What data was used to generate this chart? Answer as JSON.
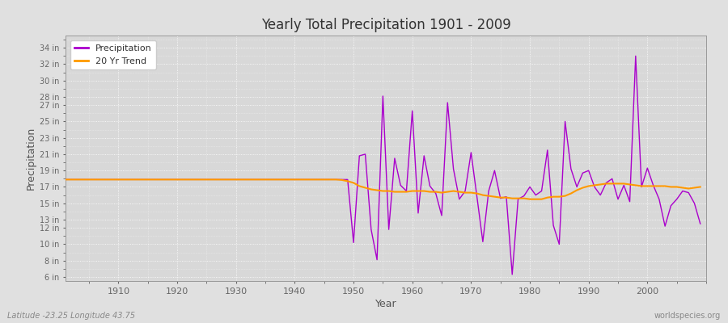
{
  "title": "Yearly Total Precipitation 1901 - 2009",
  "xlabel": "Year",
  "ylabel": "Precipitation",
  "background_color": "#e0e0e0",
  "plot_bg_color": "#d8d8d8",
  "precip_color": "#aa00cc",
  "trend_color": "#ff9900",
  "legend_labels": [
    "Precipitation",
    "20 Yr Trend"
  ],
  "yticks": [
    6,
    8,
    10,
    12,
    13,
    15,
    17,
    19,
    21,
    23,
    25,
    27,
    28,
    30,
    32,
    34
  ],
  "ytick_labels": [
    "6 in",
    "8 in",
    "10 in",
    "12 in",
    "13 in",
    "15 in",
    "17 in",
    "19 in",
    "21 in",
    "23 in",
    "25 in",
    "27 in",
    "28 in",
    "30 in",
    "32 in",
    "34 in"
  ],
  "ylim": [
    5.5,
    35.5
  ],
  "xlim": [
    1901,
    2010
  ],
  "xticks": [
    1910,
    1920,
    1930,
    1940,
    1950,
    1960,
    1970,
    1980,
    1990,
    2000
  ],
  "footnote_left": "Latitude -23.25 Longitude 43.75",
  "footnote_right": "worldspecies.org",
  "years": [
    1901,
    1902,
    1903,
    1904,
    1905,
    1906,
    1907,
    1908,
    1909,
    1910,
    1911,
    1912,
    1913,
    1914,
    1915,
    1916,
    1917,
    1918,
    1919,
    1920,
    1921,
    1922,
    1923,
    1924,
    1925,
    1926,
    1927,
    1928,
    1929,
    1930,
    1931,
    1932,
    1933,
    1934,
    1935,
    1936,
    1937,
    1938,
    1939,
    1940,
    1941,
    1942,
    1943,
    1944,
    1945,
    1946,
    1947,
    1948,
    1949,
    1950,
    1951,
    1952,
    1953,
    1954,
    1955,
    1956,
    1957,
    1958,
    1959,
    1960,
    1961,
    1962,
    1963,
    1964,
    1965,
    1966,
    1967,
    1968,
    1969,
    1970,
    1971,
    1972,
    1973,
    1974,
    1975,
    1976,
    1977,
    1978,
    1979,
    1980,
    1981,
    1982,
    1983,
    1984,
    1985,
    1986,
    1987,
    1988,
    1989,
    1990,
    1991,
    1992,
    1993,
    1994,
    1995,
    1996,
    1997,
    1998,
    1999,
    2000,
    2001,
    2002,
    2003,
    2004,
    2005,
    2006,
    2007,
    2008,
    2009
  ],
  "precip": [
    17.9,
    17.9,
    17.9,
    17.9,
    17.9,
    17.9,
    17.9,
    17.9,
    17.9,
    17.9,
    17.9,
    17.9,
    17.9,
    17.9,
    17.9,
    17.9,
    17.9,
    17.9,
    17.9,
    17.9,
    17.9,
    17.9,
    17.9,
    17.9,
    17.9,
    17.9,
    17.9,
    17.9,
    17.9,
    17.9,
    17.9,
    17.9,
    17.9,
    17.9,
    17.9,
    17.9,
    17.9,
    17.9,
    17.9,
    17.9,
    17.9,
    17.9,
    17.9,
    17.9,
    17.9,
    17.9,
    17.9,
    17.9,
    17.9,
    10.2,
    20.8,
    21.0,
    11.8,
    8.1,
    28.1,
    11.8,
    20.5,
    17.2,
    16.5,
    26.3,
    13.8,
    20.8,
    17.1,
    16.2,
    13.5,
    27.3,
    19.2,
    15.5,
    16.5,
    21.2,
    15.8,
    10.3,
    16.5,
    19.0,
    15.6,
    15.8,
    6.3,
    15.5,
    15.9,
    17.0,
    16.0,
    16.5,
    21.5,
    12.3,
    10.0,
    25.0,
    19.2,
    17.0,
    18.7,
    19.0,
    17.0,
    16.0,
    17.5,
    18.0,
    15.5,
    17.2,
    15.2,
    33.0,
    17.0,
    19.3,
    17.2,
    15.5,
    12.2,
    14.7,
    15.5,
    16.5,
    16.3,
    15.0,
    12.5
  ],
  "trend": [
    17.9,
    17.9,
    17.9,
    17.9,
    17.9,
    17.9,
    17.9,
    17.9,
    17.9,
    17.9,
    17.9,
    17.9,
    17.9,
    17.9,
    17.9,
    17.9,
    17.9,
    17.9,
    17.9,
    17.9,
    17.9,
    17.9,
    17.9,
    17.9,
    17.9,
    17.9,
    17.9,
    17.9,
    17.9,
    17.9,
    17.9,
    17.9,
    17.9,
    17.9,
    17.9,
    17.9,
    17.9,
    17.9,
    17.9,
    17.9,
    17.9,
    17.9,
    17.9,
    17.9,
    17.9,
    17.9,
    17.9,
    17.85,
    17.7,
    17.5,
    17.1,
    16.9,
    16.7,
    16.6,
    16.5,
    16.5,
    16.4,
    16.4,
    16.4,
    16.5,
    16.5,
    16.5,
    16.4,
    16.4,
    16.3,
    16.4,
    16.5,
    16.4,
    16.3,
    16.3,
    16.2,
    16.0,
    15.9,
    15.8,
    15.7,
    15.7,
    15.6,
    15.6,
    15.6,
    15.5,
    15.5,
    15.5,
    15.7,
    15.8,
    15.8,
    15.9,
    16.2,
    16.6,
    16.9,
    17.1,
    17.2,
    17.3,
    17.4,
    17.4,
    17.4,
    17.4,
    17.3,
    17.2,
    17.1,
    17.1,
    17.1,
    17.1,
    17.1,
    17.0,
    17.0,
    16.9,
    16.8,
    16.9,
    17.0
  ]
}
